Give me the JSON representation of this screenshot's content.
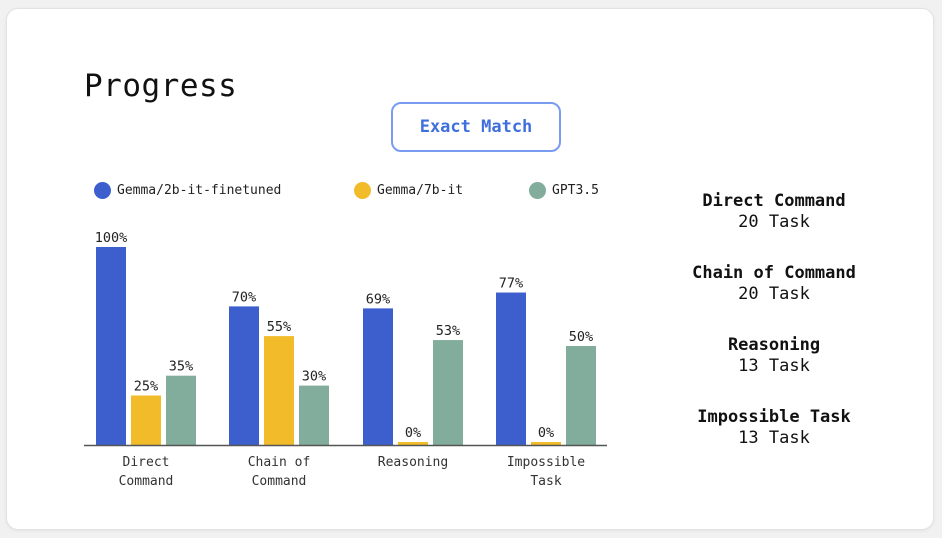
{
  "title": "Progress",
  "metric_button": "Exact Match",
  "colors": {
    "gemma2b": "#3c5fcd",
    "gemma7b": "#f1bb2a",
    "gpt35": "#82ac9b",
    "axis": "#555555"
  },
  "chart_data": {
    "type": "bar",
    "title": "",
    "categories": [
      [
        "Direct",
        "Command"
      ],
      [
        "Chain of",
        "Command"
      ],
      [
        "Reasoning"
      ],
      [
        "Impossible",
        "Task"
      ]
    ],
    "series": [
      {
        "name": "Gemma/2b-it-finetuned",
        "values": [
          100,
          70,
          69,
          77
        ],
        "labels": [
          "100%",
          "70%",
          "69%",
          "77%"
        ]
      },
      {
        "name": "Gemma/7b-it",
        "values": [
          25,
          55,
          0,
          0
        ],
        "labels": [
          "25%",
          "55%",
          "0%",
          "0%"
        ]
      },
      {
        "name": "GPT3.5",
        "values": [
          35,
          30,
          53,
          50
        ],
        "labels": [
          "35%",
          "30%",
          "53%",
          "50%"
        ]
      }
    ],
    "ylim": [
      0,
      100
    ],
    "legend_position": "top",
    "grid": false
  },
  "tasks": [
    {
      "name": "Direct Command",
      "count": "20 Task"
    },
    {
      "name": "Chain of Command",
      "count": "20 Task"
    },
    {
      "name": "Reasoning",
      "count": "13 Task"
    },
    {
      "name": "Impossible Task",
      "count": "13 Task"
    }
  ]
}
